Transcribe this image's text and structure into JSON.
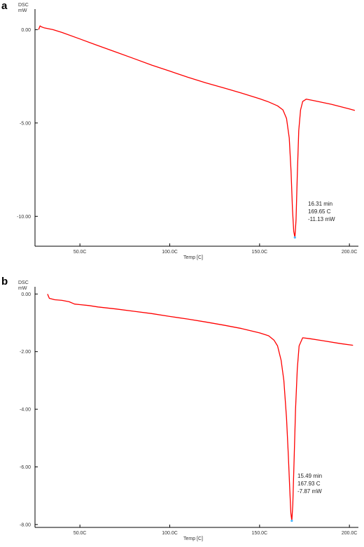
{
  "panels": [
    {
      "letter": "a"
    },
    {
      "letter": "b"
    }
  ],
  "chart_data": [
    {
      "type": "line",
      "panel": "a",
      "ylabel_top": "DSC",
      "ylabel_unit": "mW",
      "xlabel": "Temp  [C]",
      "xlim": [
        25,
        205
      ],
      "ylim": [
        -11.6,
        1.1
      ],
      "x_ticks": [
        50,
        100,
        150,
        200
      ],
      "x_tick_labels": [
        "50.0C",
        "100.0C",
        "150.0C",
        "200.0C"
      ],
      "y_ticks": [
        0,
        -5,
        -10
      ],
      "y_tick_labels": [
        "0.00",
        "-5.00",
        "-10.00"
      ],
      "grid": false,
      "series": [
        {
          "color": "#ff0000",
          "x": [
            27,
            27.8,
            28.6,
            30,
            35,
            40,
            50,
            60,
            70,
            80,
            90,
            100,
            110,
            120,
            130,
            140,
            150,
            155,
            160,
            163,
            165,
            166.5,
            167.5,
            168.3,
            169,
            169.65,
            170.3,
            171,
            171.8,
            172.8,
            174,
            176,
            180,
            190,
            200,
            203
          ],
          "y": [
            0,
            0.2,
            0.15,
            0.1,
            0,
            -0.15,
            -0.5,
            -0.85,
            -1.2,
            -1.55,
            -1.9,
            -2.22,
            -2.55,
            -2.85,
            -3.12,
            -3.4,
            -3.7,
            -3.87,
            -4.08,
            -4.3,
            -4.75,
            -5.8,
            -7.6,
            -9.6,
            -10.8,
            -11.13,
            -10.2,
            -7.8,
            -5.4,
            -4.3,
            -3.85,
            -3.72,
            -3.8,
            -4.0,
            -4.25,
            -4.33
          ]
        }
      ],
      "annotation": {
        "x": 169.65,
        "y": -11.13,
        "lines": [
          "16.31 min",
          "169.65 C",
          "-11.13 mW"
        ]
      }
    },
    {
      "type": "line",
      "panel": "b",
      "ylabel_top": "DSC",
      "ylabel_unit": "mW",
      "xlabel": "Temp  [C]",
      "xlim": [
        25,
        205
      ],
      "ylim": [
        -8.1,
        0.25
      ],
      "x_ticks": [
        50,
        100,
        150,
        200
      ],
      "x_tick_labels": [
        "50.0C",
        "100.0C",
        "150.0C",
        "200.0C"
      ],
      "y_ticks": [
        0,
        -2,
        -4,
        -6,
        -8
      ],
      "y_tick_labels": [
        "0.00",
        "-2.00",
        "-4.00",
        "-6.00",
        "-8.00"
      ],
      "grid": false,
      "series": [
        {
          "color": "#ff0000",
          "x": [
            32,
            32.3,
            33,
            36,
            40,
            44,
            47,
            50,
            55,
            60,
            70,
            80,
            90,
            100,
            110,
            120,
            130,
            140,
            150,
            155,
            158,
            160,
            162,
            163.5,
            165,
            166,
            166.8,
            167.4,
            167.93,
            168.5,
            169.2,
            170,
            171,
            172,
            174,
            178,
            185,
            195,
            202
          ],
          "y": [
            0,
            -0.05,
            -0.15,
            -0.2,
            -0.22,
            -0.27,
            -0.35,
            -0.37,
            -0.4,
            -0.45,
            -0.52,
            -0.6,
            -0.68,
            -0.78,
            -0.87,
            -0.97,
            -1.08,
            -1.2,
            -1.35,
            -1.45,
            -1.6,
            -1.8,
            -2.3,
            -3.0,
            -4.3,
            -5.6,
            -6.8,
            -7.6,
            -7.87,
            -7.3,
            -5.8,
            -4.0,
            -2.6,
            -1.8,
            -1.52,
            -1.55,
            -1.62,
            -1.72,
            -1.78
          ]
        }
      ],
      "annotation": {
        "x": 167.93,
        "y": -7.87,
        "lines": [
          "15.49 min",
          "167.93 C",
          "-7.87 mW"
        ]
      }
    }
  ]
}
